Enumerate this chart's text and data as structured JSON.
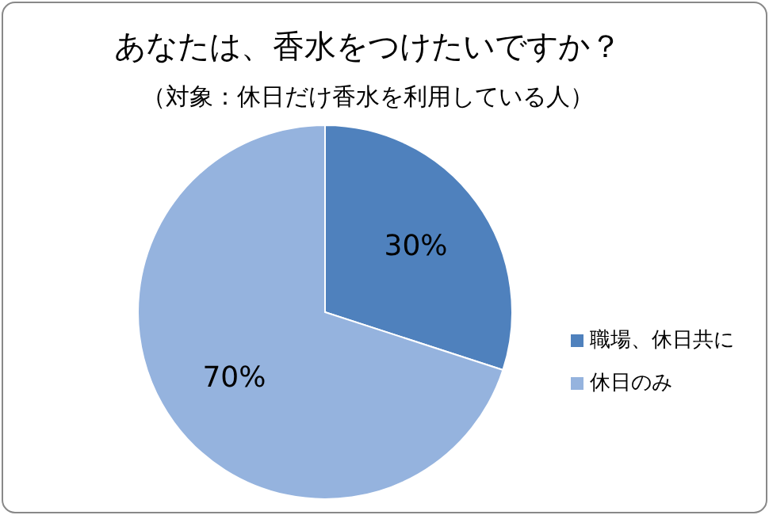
{
  "chart_data": {
    "type": "pie",
    "title": "あなたは、香水をつけたいですか？",
    "subtitle": "（対象：休日だけ香水を利用している人）",
    "categories": [
      "職場、休日共に",
      "休日のみ"
    ],
    "values": [
      30,
      70
    ],
    "colors": [
      "#4f81bd",
      "#95b3de"
    ],
    "value_labels": [
      "30%",
      "70%"
    ],
    "legend": "right"
  }
}
